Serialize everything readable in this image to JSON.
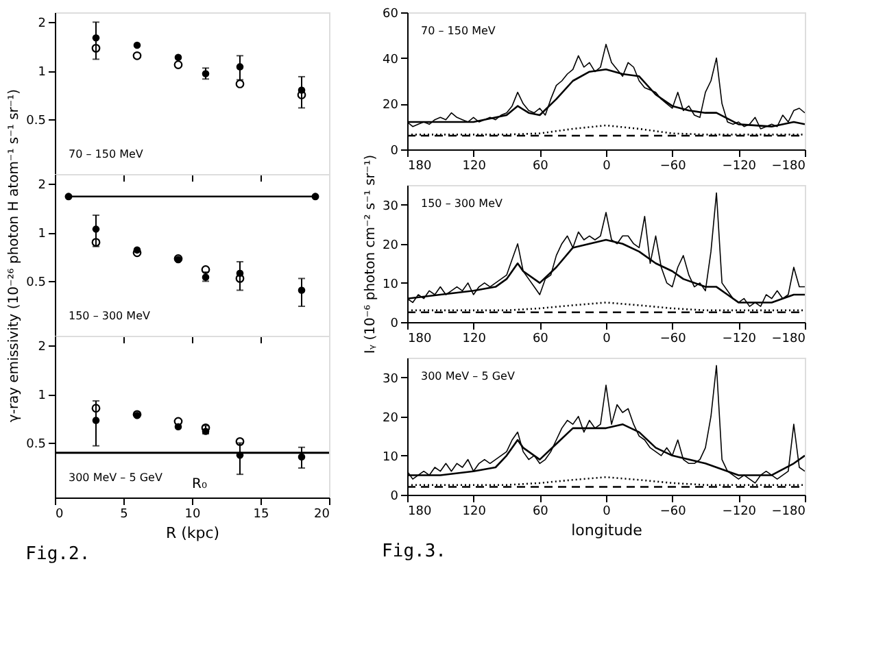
{
  "chart_data": [
    {
      "type": "scatter",
      "x": [
        3,
        6,
        9,
        11,
        13.5,
        18
      ],
      "xlim": [
        0,
        20
      ],
      "xticks": [
        0,
        5,
        10,
        15,
        20
      ],
      "ylim": [
        0.23,
        2.3
      ],
      "yticks": [
        0.5,
        1,
        2
      ],
      "log": true,
      "tick_labels": "y",
      "marker": "circle",
      "annotations": [
        "70 – 150 MeV"
      ],
      "series": [
        {
          "color": "#000000",
          "values": [
            1.6,
            1.44,
            1.21,
            0.96,
            1.06,
            0.76
          ],
          "errors": [
            [
              1.18,
              2.0
            ],
            null,
            null,
            [
              0.89,
              1.04
            ],
            [
              0.88,
              1.24
            ],
            [
              0.59,
              0.92
            ]
          ]
        },
        {
          "color": "#000000",
          "values": [
            1.38,
            1.24,
            1.09,
            null,
            0.83,
            0.71
          ]
        }
      ]
    },
    {
      "type": "scatter",
      "x": [
        3,
        6,
        9,
        11,
        13.5,
        18
      ],
      "xlim": [
        0,
        20
      ],
      "xticks": [
        0,
        5,
        10,
        15,
        20
      ],
      "ylim": [
        0.23,
        2.3
      ],
      "yticks": [
        0.5,
        1,
        2
      ],
      "log": true,
      "tick_labels": "y",
      "marker": "circle",
      "ylabel": "γ-ray emissivity (10⁻²⁶ photon H atom⁻¹ s⁻¹ sr⁻¹)",
      "annotations": [
        "150 – 300 MeV"
      ],
      "series": [
        {
          "color": "#000000",
          "values": [
            1.05,
            0.78,
            0.68,
            0.53,
            0.56,
            0.44
          ],
          "errors": [
            [
              0.82,
              1.28
            ],
            null,
            null,
            [
              0.5,
              0.57
            ],
            [
              0.44,
              0.66
            ],
            [
              0.35,
              0.52
            ]
          ]
        },
        {
          "color": "#000000",
          "values": [
            0.87,
            0.75,
            0.69,
            0.59,
            0.52,
            null
          ]
        },
        {
          "type": "line",
          "color": "#000000",
          "x": [
            1,
            19
          ],
          "values": [
            1.67,
            1.67
          ]
        }
      ]
    },
    {
      "type": "scatter",
      "x": [
        3,
        6,
        9,
        11,
        13.5,
        18
      ],
      "xlim": [
        0,
        20
      ],
      "xticks": [
        0,
        5,
        10,
        15,
        20
      ],
      "ylim": [
        0.23,
        2.3
      ],
      "yticks": [
        0.5,
        1,
        2
      ],
      "log": true,
      "marker": "circle",
      "xlabel": "R (kpc)",
      "title": "Fig.2.",
      "annotations": [
        "300 MeV – 5 GeV",
        "R₀"
      ],
      "ref_lines": [
        {
          "axis": "y",
          "value": 0.435,
          "color": "#000000"
        }
      ],
      "series": [
        {
          "color": "#000000",
          "values": [
            0.69,
            0.74,
            0.63,
            0.59,
            0.42,
            0.41
          ],
          "errors": [
            [
              0.48,
              0.91
            ],
            null,
            null,
            [
              0.57,
              0.64
            ],
            [
              0.32,
              0.5
            ],
            [
              0.35,
              0.47
            ]
          ]
        },
        {
          "color": "#000000",
          "values": [
            0.82,
            0.75,
            0.68,
            0.62,
            0.51,
            null
          ]
        }
      ]
    },
    {
      "type": "line",
      "xlim": [
        180,
        -180
      ],
      "xticks": [
        180,
        120,
        60,
        0,
        -60,
        -120,
        -180
      ],
      "ylim": [
        0,
        60
      ],
      "yticks": [
        0,
        20,
        40,
        60
      ],
      "marker": "none",
      "annotations": [
        "70 – 150 MeV"
      ],
      "series": [
        {
          "color": "#000000",
          "line_style": "solid",
          "x": [
            180,
            175,
            170,
            165,
            160,
            155,
            150,
            145,
            140,
            135,
            130,
            125,
            120,
            115,
            110,
            105,
            100,
            95,
            90,
            85,
            80,
            75,
            70,
            65,
            60,
            55,
            50,
            45,
            40,
            35,
            30,
            25,
            20,
            15,
            10,
            5,
            0,
            -5,
            -10,
            -15,
            -20,
            -25,
            -30,
            -35,
            -40,
            -45,
            -50,
            -55,
            -60,
            -65,
            -70,
            -75,
            -80,
            -85,
            -90,
            -95,
            -100,
            -105,
            -110,
            -115,
            -120,
            -125,
            -130,
            -135,
            -140,
            -145,
            -150,
            -155,
            -160,
            -165,
            -170,
            -175,
            -180
          ],
          "values": [
            12,
            10,
            11,
            12,
            11,
            13,
            14,
            13,
            16,
            14,
            13,
            12,
            14,
            12,
            13,
            14,
            13,
            15,
            16,
            19,
            25,
            20,
            17,
            16,
            18,
            15,
            22,
            28,
            30,
            33,
            35,
            41,
            36,
            38,
            34,
            36,
            46,
            38,
            35,
            32,
            38,
            36,
            30,
            27,
            26,
            25,
            22,
            20,
            18,
            25,
            17,
            19,
            15,
            14,
            25,
            30,
            40,
            20,
            12,
            11,
            12,
            10,
            11,
            14,
            9,
            10,
            11,
            10,
            15,
            12,
            17,
            18,
            16
          ]
        },
        {
          "color": "#000000",
          "line_style": "solid",
          "x": [
            180,
            150,
            120,
            90,
            80,
            70,
            60,
            45,
            30,
            15,
            0,
            -15,
            -30,
            -45,
            -60,
            -75,
            -90,
            -100,
            -120,
            -150,
            -170,
            -180
          ],
          "values": [
            12,
            12,
            12,
            15,
            19,
            16,
            15,
            22,
            30,
            34,
            35,
            33,
            32,
            24,
            19,
            17,
            16,
            16,
            11,
            10,
            12,
            11
          ]
        },
        {
          "color": "#000000",
          "line_style": "dotted",
          "x": [
            180,
            90,
            60,
            30,
            0,
            -30,
            -60,
            -90,
            -180
          ],
          "values": [
            6.5,
            6.5,
            7,
            9,
            10.5,
            9,
            7,
            6.5,
            6.5
          ]
        },
        {
          "color": "#000000",
          "line_style": "dashed",
          "x": [
            180,
            -180
          ],
          "values": [
            6,
            6
          ]
        }
      ]
    },
    {
      "type": "line",
      "xlim": [
        180,
        -180
      ],
      "xticks": [
        180,
        120,
        60,
        0,
        -60,
        -120,
        -180
      ],
      "ylim": [
        0,
        35
      ],
      "yticks": [
        0,
        10,
        20,
        30
      ],
      "marker": "none",
      "ylabel": "Iᵧ (10⁻⁶ photon cm⁻² s⁻¹ sr⁻¹)",
      "annotations": [
        "150 – 300 MeV"
      ],
      "series": [
        {
          "color": "#000000",
          "line_style": "solid",
          "x": [
            180,
            175,
            170,
            165,
            160,
            155,
            150,
            145,
            140,
            135,
            130,
            125,
            120,
            115,
            110,
            105,
            100,
            95,
            90,
            85,
            80,
            75,
            70,
            65,
            60,
            55,
            50,
            45,
            40,
            35,
            30,
            25,
            20,
            15,
            10,
            5,
            0,
            -5,
            -10,
            -15,
            -20,
            -25,
            -30,
            -35,
            -40,
            -45,
            -50,
            -55,
            -60,
            -65,
            -70,
            -75,
            -80,
            -85,
            -90,
            -95,
            -100,
            -105,
            -110,
            -115,
            -120,
            -125,
            -130,
            -135,
            -140,
            -145,
            -150,
            -155,
            -160,
            -165,
            -170,
            -175,
            -180
          ],
          "values": [
            6,
            5,
            7,
            6,
            8,
            7,
            9,
            7,
            8,
            9,
            8,
            10,
            7,
            9,
            10,
            9,
            10,
            11,
            12,
            16,
            20,
            13,
            11,
            9,
            7,
            11,
            12,
            17,
            20,
            22,
            19,
            23,
            21,
            22,
            21,
            22,
            28,
            21,
            20,
            22,
            22,
            20,
            19,
            27,
            15,
            22,
            14,
            10,
            9,
            14,
            17,
            12,
            9,
            10,
            8,
            18,
            33,
            10,
            8,
            6,
            5,
            6,
            4,
            5,
            4,
            7,
            6,
            8,
            6,
            7,
            14,
            9,
            9
          ]
        },
        {
          "color": "#000000",
          "line_style": "solid",
          "x": [
            180,
            150,
            120,
            100,
            90,
            80,
            75,
            60,
            45,
            30,
            15,
            0,
            -15,
            -30,
            -45,
            -60,
            -70,
            -90,
            -100,
            -110,
            -120,
            -150,
            -170,
            -180
          ],
          "values": [
            6,
            7,
            8,
            9,
            11,
            15,
            13,
            10,
            14,
            19,
            20,
            21,
            20,
            18,
            15,
            13,
            11,
            9,
            9,
            7,
            5,
            5,
            7,
            7
          ]
        },
        {
          "color": "#000000",
          "line_style": "dotted",
          "x": [
            180,
            90,
            60,
            30,
            0,
            -30,
            -60,
            -90,
            -180
          ],
          "values": [
            3,
            3,
            3.5,
            4.3,
            5,
            4.3,
            3.5,
            3,
            3
          ]
        },
        {
          "color": "#000000",
          "line_style": "dashed",
          "x": [
            180,
            -180
          ],
          "values": [
            2.5,
            2.5
          ]
        }
      ]
    },
    {
      "type": "line",
      "xlim": [
        180,
        -180
      ],
      "xticks": [
        180,
        120,
        60,
        0,
        -60,
        -120,
        -180
      ],
      "ylim": [
        0,
        35
      ],
      "yticks": [
        0,
        10,
        20,
        30
      ],
      "marker": "none",
      "xlabel": "longitude",
      "title": "Fig.3.",
      "annotations": [
        "300 MeV – 5 GeV"
      ],
      "series": [
        {
          "color": "#000000",
          "line_style": "solid",
          "x": [
            180,
            175,
            170,
            165,
            160,
            155,
            150,
            145,
            140,
            135,
            130,
            125,
            120,
            115,
            110,
            105,
            100,
            95,
            90,
            85,
            80,
            75,
            70,
            65,
            60,
            55,
            50,
            45,
            40,
            35,
            30,
            25,
            20,
            15,
            10,
            5,
            0,
            -5,
            -10,
            -15,
            -20,
            -25,
            -30,
            -35,
            -40,
            -45,
            -50,
            -55,
            -60,
            -65,
            -70,
            -75,
            -80,
            -85,
            -90,
            -95,
            -100,
            -105,
            -110,
            -115,
            -120,
            -125,
            -130,
            -135,
            -140,
            -145,
            -150,
            -155,
            -160,
            -165,
            -170,
            -175,
            -180
          ],
          "values": [
            6,
            4,
            5,
            6,
            5,
            7,
            6,
            8,
            6,
            8,
            7,
            9,
            6,
            8,
            9,
            8,
            9,
            10,
            11,
            14,
            16,
            11,
            9,
            10,
            8,
            9,
            11,
            14,
            17,
            19,
            18,
            20,
            16,
            19,
            17,
            18,
            28,
            18,
            23,
            21,
            22,
            18,
            15,
            14,
            12,
            11,
            10,
            12,
            10,
            14,
            9,
            8,
            8,
            9,
            12,
            20,
            33,
            9,
            6,
            5,
            4,
            5,
            4,
            3,
            5,
            6,
            5,
            4,
            5,
            6,
            18,
            7,
            6
          ]
        },
        {
          "color": "#000000",
          "line_style": "solid",
          "x": [
            180,
            150,
            120,
            100,
            90,
            80,
            75,
            60,
            45,
            30,
            15,
            0,
            -15,
            -30,
            -45,
            -60,
            -75,
            -90,
            -100,
            -110,
            -120,
            -150,
            -170,
            -180
          ],
          "values": [
            5,
            5,
            6,
            7,
            10,
            14,
            12,
            9,
            13,
            17,
            17,
            17,
            18,
            16,
            12,
            10,
            9,
            8,
            7,
            6,
            5,
            5,
            8,
            10
          ]
        },
        {
          "color": "#000000",
          "line_style": "dotted",
          "x": [
            180,
            90,
            60,
            30,
            0,
            -30,
            -60,
            -90,
            -180
          ],
          "values": [
            2.5,
            2.5,
            3,
            3.8,
            4.5,
            3.8,
            3,
            2.5,
            2.5
          ]
        },
        {
          "color": "#000000",
          "line_style": "dashed",
          "x": [
            180,
            -180
          ],
          "values": [
            2,
            2
          ]
        }
      ]
    }
  ]
}
